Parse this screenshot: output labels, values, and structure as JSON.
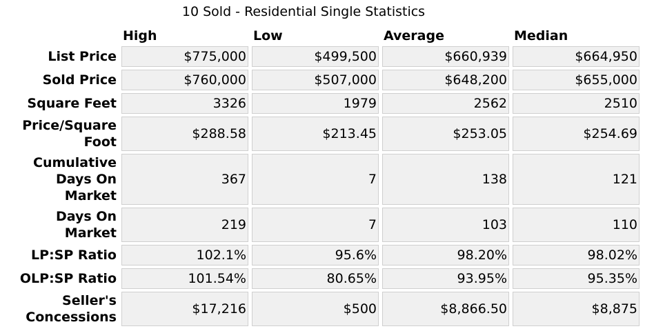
{
  "caption": "10 Sold - Residential Single Statistics",
  "columns": [
    "High",
    "Low",
    "Average",
    "Median"
  ],
  "rows": [
    {
      "label": "List Price",
      "values": [
        "$775,000",
        "$499,500",
        "$660,939",
        "$664,950"
      ]
    },
    {
      "label": "Sold Price",
      "values": [
        "$760,000",
        "$507,000",
        "$648,200",
        "$655,000"
      ]
    },
    {
      "label": "Square Feet",
      "values": [
        "3326",
        "1979",
        "2562",
        "2510"
      ]
    },
    {
      "label": "Price/Square Foot",
      "values": [
        "$288.58",
        "$213.45",
        "$253.05",
        "$254.69"
      ]
    },
    {
      "label": "Cumulative Days On Market",
      "values": [
        "367",
        "7",
        "138",
        "121"
      ]
    },
    {
      "label": "Days On Market",
      "values": [
        "219",
        "7",
        "103",
        "110"
      ]
    },
    {
      "label": "LP:SP Ratio",
      "values": [
        "102.1%",
        "95.6%",
        "98.20%",
        "98.02%"
      ]
    },
    {
      "label": "OLP:SP Ratio",
      "values": [
        "101.54%",
        "80.65%",
        "93.95%",
        "95.35%"
      ]
    },
    {
      "label": "Seller's Concessions",
      "values": [
        "$17,216",
        "$500",
        "$8,866.50",
        "$8,875"
      ]
    }
  ]
}
